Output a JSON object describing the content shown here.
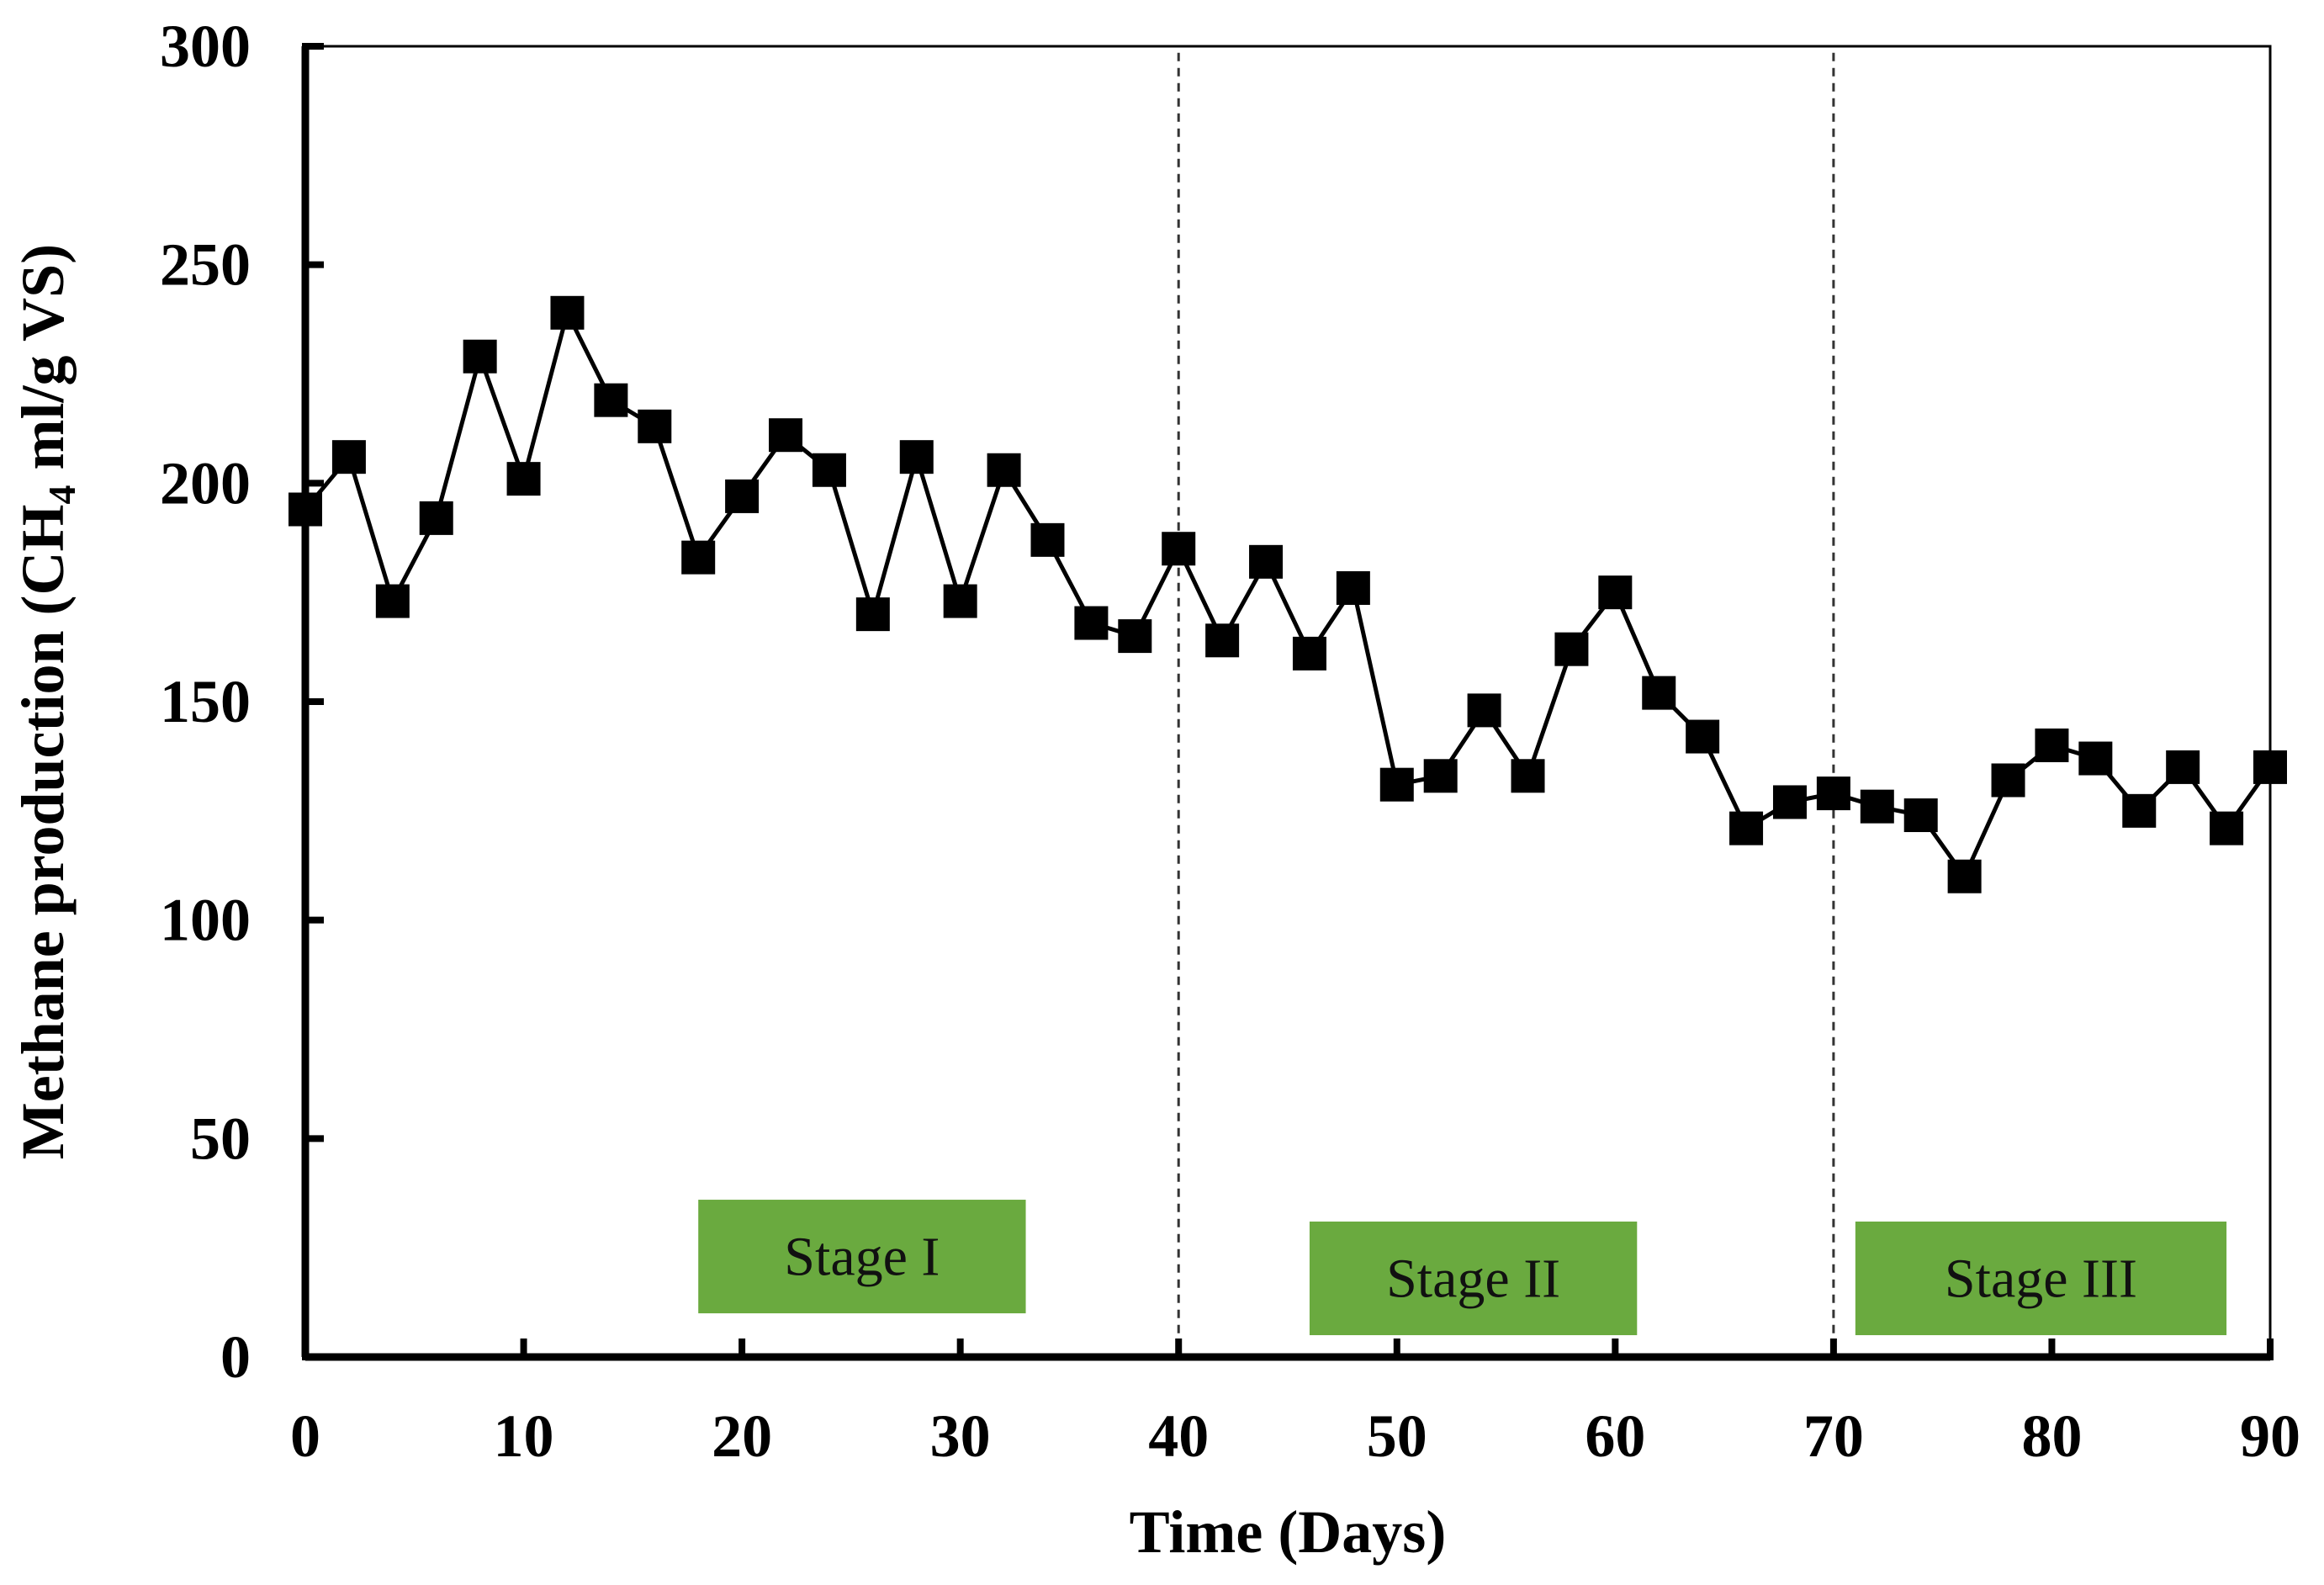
{
  "chart_data": {
    "type": "line",
    "title": "",
    "xlabel": "Time (Days)",
    "ylabel_parts": {
      "pre": "Methane production (CH",
      "sub": "4",
      "post": " ml/g VS)"
    },
    "xlim": [
      0,
      90
    ],
    "ylim": [
      0,
      300
    ],
    "x_ticks": [
      0,
      10,
      20,
      30,
      40,
      50,
      60,
      70,
      80,
      90
    ],
    "y_ticks": [
      0,
      50,
      100,
      150,
      200,
      250,
      300
    ],
    "grid": false,
    "marker": "square",
    "line_color": "#000000",
    "series": [
      {
        "name": "Methane production",
        "x": [
          0,
          2,
          4,
          6,
          8,
          10,
          12,
          14,
          16,
          18,
          20,
          22,
          24,
          26,
          28,
          30,
          32,
          34,
          36,
          38,
          40,
          42,
          44,
          46,
          48,
          50,
          52,
          54,
          56,
          58,
          60,
          62,
          64,
          66,
          68,
          70,
          72,
          74,
          76,
          78,
          80,
          82,
          84,
          86,
          88,
          90
        ],
        "y": [
          194,
          206,
          173,
          192,
          229,
          201,
          239,
          219,
          213,
          183,
          197,
          211,
          203,
          170,
          206,
          173,
          203,
          187,
          168,
          165,
          185,
          164,
          182,
          161,
          176,
          131,
          133,
          148,
          133,
          162,
          175,
          152,
          142,
          121,
          127,
          129,
          126,
          124,
          110,
          132,
          140,
          137,
          125,
          135,
          121,
          135
        ]
      }
    ],
    "stage_dividers": [
      40,
      70
    ],
    "stages": [
      {
        "label": "Stage I",
        "x_start": 18,
        "x_end": 33,
        "y_low": 10,
        "y_high": 36,
        "color": "#6aaa3f"
      },
      {
        "label": "Stage II",
        "x_start": 46,
        "x_end": 61,
        "y_low": 5,
        "y_high": 31,
        "color": "#6aaa3f"
      },
      {
        "label": "Stage III",
        "x_start": 71,
        "x_end": 88,
        "y_low": 5,
        "y_high": 31,
        "color": "#6aaa3f"
      }
    ]
  }
}
